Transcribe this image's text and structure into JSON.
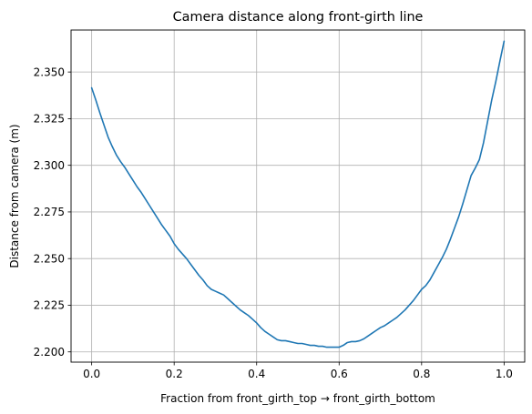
{
  "chart_data": {
    "type": "line",
    "title": "Camera distance along front-girth line",
    "xlabel": "Fraction from front_girth_top → front_girth_bottom",
    "ylabel": "Distance from camera (m)",
    "xlim": [
      -0.05,
      1.05
    ],
    "ylim": [
      2.1945,
      2.3725
    ],
    "xticks": [
      0.0,
      0.2,
      0.4,
      0.6,
      0.8,
      1.0
    ],
    "xtick_labels": [
      "0.0",
      "0.2",
      "0.4",
      "0.6",
      "0.8",
      "1.0"
    ],
    "yticks": [
      2.2,
      2.225,
      2.25,
      2.275,
      2.3,
      2.325,
      2.35
    ],
    "ytick_labels": [
      "2.200",
      "2.225",
      "2.250",
      "2.275",
      "2.300",
      "2.325",
      "2.350"
    ],
    "grid": true,
    "series": [
      {
        "color": "#1f77b4",
        "x": [
          0.0,
          0.01,
          0.02,
          0.03,
          0.04,
          0.05,
          0.06,
          0.07,
          0.08,
          0.09,
          0.1,
          0.11,
          0.12,
          0.13,
          0.14,
          0.15,
          0.16,
          0.17,
          0.18,
          0.19,
          0.2,
          0.21,
          0.22,
          0.23,
          0.24,
          0.25,
          0.26,
          0.27,
          0.28,
          0.29,
          0.3,
          0.31,
          0.32,
          0.33,
          0.34,
          0.35,
          0.36,
          0.37,
          0.38,
          0.39,
          0.4,
          0.41,
          0.42,
          0.43,
          0.44,
          0.45,
          0.46,
          0.47,
          0.48,
          0.49,
          0.5,
          0.51,
          0.52,
          0.53,
          0.54,
          0.55,
          0.56,
          0.57,
          0.58,
          0.59,
          0.6,
          0.61,
          0.62,
          0.63,
          0.64,
          0.65,
          0.66,
          0.67,
          0.68,
          0.69,
          0.7,
          0.71,
          0.72,
          0.73,
          0.74,
          0.75,
          0.76,
          0.77,
          0.78,
          0.79,
          0.8,
          0.81,
          0.82,
          0.83,
          0.84,
          0.85,
          0.86,
          0.87,
          0.88,
          0.89,
          0.9,
          0.91,
          0.92,
          0.93,
          0.94,
          0.95,
          0.96,
          0.97,
          0.98,
          0.99,
          1.0
        ],
        "y": [
          2.3415,
          2.335,
          2.328,
          2.3215,
          2.315,
          2.31,
          2.3055,
          2.302,
          2.299,
          2.2955,
          2.292,
          2.2885,
          2.2855,
          2.282,
          2.2785,
          2.275,
          2.2715,
          2.268,
          2.265,
          2.262,
          2.258,
          2.255,
          2.2525,
          2.25,
          2.247,
          2.244,
          2.241,
          2.2385,
          2.2355,
          2.2335,
          2.2325,
          2.2315,
          2.2305,
          2.2285,
          2.2265,
          2.2245,
          2.2225,
          2.221,
          2.2195,
          2.2175,
          2.2155,
          2.213,
          2.211,
          2.2095,
          2.208,
          2.2065,
          2.206,
          2.206,
          2.2055,
          2.205,
          2.2045,
          2.2045,
          2.204,
          2.2035,
          2.2035,
          2.203,
          2.203,
          2.2025,
          2.2025,
          2.2025,
          2.2025,
          2.2035,
          2.205,
          2.2055,
          2.2055,
          2.206,
          2.207,
          2.2085,
          2.21,
          2.2115,
          2.213,
          2.214,
          2.2155,
          2.217,
          2.2185,
          2.2205,
          2.2225,
          2.225,
          2.2275,
          2.2305,
          2.2335,
          2.2355,
          2.2385,
          2.2425,
          2.2465,
          2.2505,
          2.255,
          2.2605,
          2.2665,
          2.2725,
          2.2795,
          2.287,
          2.2945,
          2.2985,
          2.303,
          2.312,
          2.3235,
          2.335,
          2.345,
          2.356,
          2.3665
        ]
      }
    ]
  }
}
